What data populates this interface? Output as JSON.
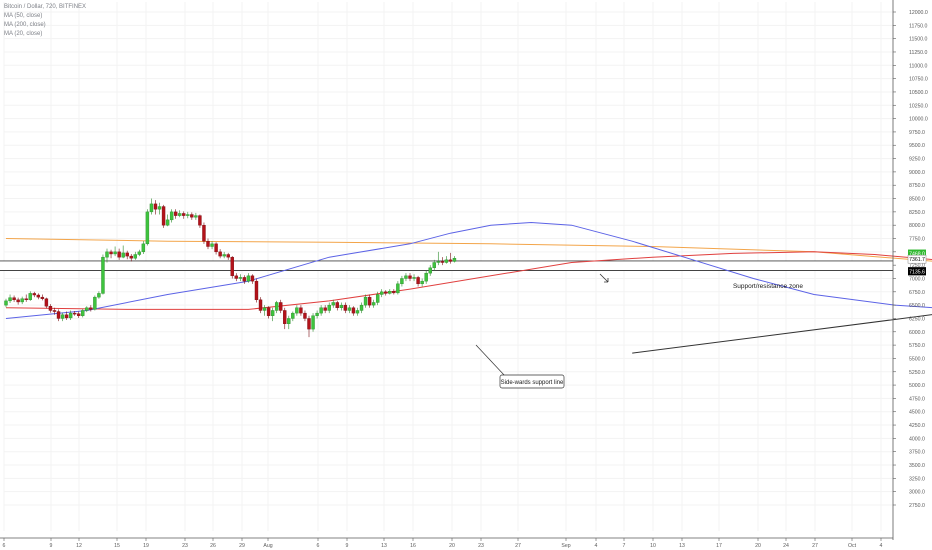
{
  "legend": {
    "symbol": "Bitcoin / Dollar, 720, BITFINEX",
    "ma50": "MA (50, close)",
    "ma200": "MA (200, close)",
    "ma20": "MA (20, close)"
  },
  "annotations": {
    "zone_label": "Support/resistance zone",
    "support_label": "Side-wards support line"
  },
  "colors": {
    "up": "#3ec33e",
    "down": "#b3121a",
    "ma20": "#5c63e6",
    "ma50": "#e0403f",
    "ma200": "#f3a54a",
    "price_tag": "#000000",
    "last_tag": "#2fb82f",
    "arrow_up": "#2fb82f"
  },
  "chart_data": {
    "type": "candlestick",
    "title": "Bitcoin / Dollar, 720, BITFINEX",
    "ylim": [
      2700,
      12300
    ],
    "y_ticks": [
      "12000.0",
      "11750.0",
      "11500.0",
      "11250.0",
      "11000.0",
      "10750.0",
      "10500.0",
      "10250.0",
      "10000.0",
      "9750.0",
      "9500.0",
      "9250.0",
      "9000.0",
      "8750.0",
      "8500.0",
      "8250.0",
      "8000.0",
      "7750.0",
      "7500.0",
      "7250.0",
      "7000.0",
      "6750.0",
      "6500.0",
      "6250.0",
      "6000.0",
      "5750.0",
      "5500.0",
      "5250.0",
      "5000.0",
      "4750.0",
      "4500.0",
      "4250.0",
      "4000.0",
      "3750.0",
      "3500.0",
      "3250.0",
      "3000.0",
      "2750.0"
    ],
    "x_ticks": [
      "6",
      "9",
      "12",
      "15",
      "19",
      "23",
      "26",
      "29",
      "Aug",
      "6",
      "9",
      "13",
      "16",
      "20",
      "23",
      "27",
      "Sep",
      "4",
      "7",
      "10",
      "13",
      "17",
      "20",
      "24",
      "27",
      "Oct",
      "4"
    ],
    "price_tags": [
      "7468.0",
      "7361.7",
      "7135.7",
      "7135.6"
    ],
    "candles": [
      {
        "o": 6500,
        "c": 6580,
        "h": 6620,
        "l": 6460
      },
      {
        "o": 6580,
        "c": 6640,
        "h": 6700,
        "l": 6540
      },
      {
        "o": 6640,
        "c": 6600,
        "h": 6680,
        "l": 6560
      },
      {
        "o": 6600,
        "c": 6560,
        "h": 6640,
        "l": 6510
      },
      {
        "o": 6560,
        "c": 6620,
        "h": 6660,
        "l": 6520
      },
      {
        "o": 6620,
        "c": 6600,
        "h": 6700,
        "l": 6560
      },
      {
        "o": 6600,
        "c": 6720,
        "h": 6760,
        "l": 6580
      },
      {
        "o": 6720,
        "c": 6690,
        "h": 6750,
        "l": 6650
      },
      {
        "o": 6690,
        "c": 6650,
        "h": 6720,
        "l": 6610
      },
      {
        "o": 6650,
        "c": 6620,
        "h": 6700,
        "l": 6590
      },
      {
        "o": 6620,
        "c": 6480,
        "h": 6640,
        "l": 6440
      },
      {
        "o": 6480,
        "c": 6400,
        "h": 6520,
        "l": 6360
      },
      {
        "o": 6400,
        "c": 6380,
        "h": 6450,
        "l": 6320
      },
      {
        "o": 6380,
        "c": 6250,
        "h": 6420,
        "l": 6200
      },
      {
        "o": 6250,
        "c": 6320,
        "h": 6360,
        "l": 6200
      },
      {
        "o": 6320,
        "c": 6260,
        "h": 6380,
        "l": 6220
      },
      {
        "o": 6260,
        "c": 6350,
        "h": 6400,
        "l": 6220
      },
      {
        "o": 6350,
        "c": 6340,
        "h": 6390,
        "l": 6300
      },
      {
        "o": 6340,
        "c": 6300,
        "h": 6380,
        "l": 6260
      },
      {
        "o": 6300,
        "c": 6400,
        "h": 6430,
        "l": 6270
      },
      {
        "o": 6400,
        "c": 6450,
        "h": 6480,
        "l": 6370
      },
      {
        "o": 6450,
        "c": 6420,
        "h": 6500,
        "l": 6380
      },
      {
        "o": 6420,
        "c": 6650,
        "h": 6680,
        "l": 6400
      },
      {
        "o": 6650,
        "c": 6720,
        "h": 6760,
        "l": 6620
      },
      {
        "o": 6720,
        "c": 7400,
        "h": 7450,
        "l": 6700
      },
      {
        "o": 7400,
        "c": 7500,
        "h": 7560,
        "l": 7300
      },
      {
        "o": 7500,
        "c": 7460,
        "h": 7540,
        "l": 7380
      },
      {
        "o": 7460,
        "c": 7500,
        "h": 7600,
        "l": 7420
      },
      {
        "o": 7500,
        "c": 7400,
        "h": 7560,
        "l": 7350
      },
      {
        "o": 7400,
        "c": 7480,
        "h": 7620,
        "l": 7380
      },
      {
        "o": 7480,
        "c": 7420,
        "h": 7520,
        "l": 7360
      },
      {
        "o": 7420,
        "c": 7380,
        "h": 7460,
        "l": 7320
      },
      {
        "o": 7380,
        "c": 7450,
        "h": 7500,
        "l": 7350
      },
      {
        "o": 7450,
        "c": 7500,
        "h": 7540,
        "l": 7420
      },
      {
        "o": 7500,
        "c": 7650,
        "h": 7700,
        "l": 7460
      },
      {
        "o": 7650,
        "c": 8250,
        "h": 8300,
        "l": 7620
      },
      {
        "o": 8250,
        "c": 8400,
        "h": 8500,
        "l": 8200
      },
      {
        "o": 8400,
        "c": 8300,
        "h": 8470,
        "l": 8200
      },
      {
        "o": 8300,
        "c": 8350,
        "h": 8420,
        "l": 8200
      },
      {
        "o": 8350,
        "c": 8000,
        "h": 8380,
        "l": 7950
      },
      {
        "o": 8000,
        "c": 8100,
        "h": 8200,
        "l": 7980
      },
      {
        "o": 8100,
        "c": 8250,
        "h": 8300,
        "l": 8050
      },
      {
        "o": 8250,
        "c": 8180,
        "h": 8300,
        "l": 8120
      },
      {
        "o": 8180,
        "c": 8220,
        "h": 8280,
        "l": 8150
      },
      {
        "o": 8220,
        "c": 8180,
        "h": 8260,
        "l": 8120
      },
      {
        "o": 8180,
        "c": 8200,
        "h": 8250,
        "l": 8130
      },
      {
        "o": 8200,
        "c": 8150,
        "h": 8240,
        "l": 8100
      },
      {
        "o": 8150,
        "c": 8180,
        "h": 8230,
        "l": 8100
      },
      {
        "o": 8180,
        "c": 8000,
        "h": 8200,
        "l": 7950
      },
      {
        "o": 8000,
        "c": 7700,
        "h": 8050,
        "l": 7650
      },
      {
        "o": 7700,
        "c": 7600,
        "h": 7750,
        "l": 7550
      },
      {
        "o": 7600,
        "c": 7650,
        "h": 7700,
        "l": 7550
      },
      {
        "o": 7650,
        "c": 7500,
        "h": 7680,
        "l": 7450
      },
      {
        "o": 7500,
        "c": 7420,
        "h": 7550,
        "l": 7380
      },
      {
        "o": 7420,
        "c": 7450,
        "h": 7500,
        "l": 7380
      },
      {
        "o": 7450,
        "c": 7400,
        "h": 7480,
        "l": 7350
      },
      {
        "o": 7400,
        "c": 7050,
        "h": 7420,
        "l": 7000
      },
      {
        "o": 7050,
        "c": 7000,
        "h": 7100,
        "l": 6950
      },
      {
        "o": 7000,
        "c": 7020,
        "h": 7080,
        "l": 6950
      },
      {
        "o": 7020,
        "c": 6950,
        "h": 7060,
        "l": 6900
      },
      {
        "o": 6950,
        "c": 7050,
        "h": 7100,
        "l": 6920
      },
      {
        "o": 7050,
        "c": 6950,
        "h": 7080,
        "l": 6900
      },
      {
        "o": 6950,
        "c": 6600,
        "h": 7000,
        "l": 6550
      },
      {
        "o": 6600,
        "c": 6400,
        "h": 6650,
        "l": 6350
      },
      {
        "o": 6400,
        "c": 6450,
        "h": 6500,
        "l": 6300
      },
      {
        "o": 6450,
        "c": 6300,
        "h": 6480,
        "l": 6250
      },
      {
        "o": 6300,
        "c": 6400,
        "h": 6450,
        "l": 6200
      },
      {
        "o": 6400,
        "c": 6550,
        "h": 6580,
        "l": 6350
      },
      {
        "o": 6550,
        "c": 6400,
        "h": 6600,
        "l": 6350
      },
      {
        "o": 6400,
        "c": 6150,
        "h": 6450,
        "l": 6050
      },
      {
        "o": 6150,
        "c": 6250,
        "h": 6300,
        "l": 6050
      },
      {
        "o": 6250,
        "c": 6350,
        "h": 6380,
        "l": 6200
      },
      {
        "o": 6350,
        "c": 6450,
        "h": 6500,
        "l": 6300
      },
      {
        "o": 6450,
        "c": 6350,
        "h": 6500,
        "l": 6300
      },
      {
        "o": 6350,
        "c": 6250,
        "h": 6400,
        "l": 6200
      },
      {
        "o": 6250,
        "c": 6050,
        "h": 6300,
        "l": 5900
      },
      {
        "o": 6050,
        "c": 6300,
        "h": 6350,
        "l": 6000
      },
      {
        "o": 6300,
        "c": 6350,
        "h": 6400,
        "l": 6250
      },
      {
        "o": 6350,
        "c": 6450,
        "h": 6500,
        "l": 6300
      },
      {
        "o": 6450,
        "c": 6400,
        "h": 6500,
        "l": 6350
      },
      {
        "o": 6400,
        "c": 6500,
        "h": 6550,
        "l": 6350
      },
      {
        "o": 6500,
        "c": 6550,
        "h": 6600,
        "l": 6450
      },
      {
        "o": 6550,
        "c": 6450,
        "h": 6580,
        "l": 6400
      },
      {
        "o": 6450,
        "c": 6500,
        "h": 6550,
        "l": 6400
      },
      {
        "o": 6500,
        "c": 6400,
        "h": 6550,
        "l": 6350
      },
      {
        "o": 6400,
        "c": 6450,
        "h": 6500,
        "l": 6350
      },
      {
        "o": 6450,
        "c": 6350,
        "h": 6480,
        "l": 6300
      },
      {
        "o": 6350,
        "c": 6400,
        "h": 6450,
        "l": 6300
      },
      {
        "o": 6400,
        "c": 6500,
        "h": 6550,
        "l": 6350
      },
      {
        "o": 6500,
        "c": 6650,
        "h": 6700,
        "l": 6450
      },
      {
        "o": 6650,
        "c": 6500,
        "h": 6700,
        "l": 6450
      },
      {
        "o": 6500,
        "c": 6550,
        "h": 6600,
        "l": 6450
      },
      {
        "o": 6550,
        "c": 6700,
        "h": 6750,
        "l": 6500
      },
      {
        "o": 6700,
        "c": 6750,
        "h": 6800,
        "l": 6650
      },
      {
        "o": 6750,
        "c": 6720,
        "h": 6780,
        "l": 6680
      },
      {
        "o": 6720,
        "c": 6760,
        "h": 6800,
        "l": 6700
      },
      {
        "o": 6760,
        "c": 6730,
        "h": 6800,
        "l": 6700
      },
      {
        "o": 6730,
        "c": 6900,
        "h": 6950,
        "l": 6700
      },
      {
        "o": 6900,
        "c": 7000,
        "h": 7050,
        "l": 6850
      },
      {
        "o": 7000,
        "c": 7050,
        "h": 7100,
        "l": 6950
      },
      {
        "o": 7050,
        "c": 7000,
        "h": 7100,
        "l": 6950
      },
      {
        "o": 7000,
        "c": 7020,
        "h": 7080,
        "l": 6950
      },
      {
        "o": 7020,
        "c": 6900,
        "h": 7050,
        "l": 6850
      },
      {
        "o": 6900,
        "c": 6950,
        "h": 7000,
        "l": 6850
      },
      {
        "o": 6950,
        "c": 7100,
        "h": 7150,
        "l": 6900
      },
      {
        "o": 7100,
        "c": 7200,
        "h": 7250,
        "l": 7050
      },
      {
        "o": 7200,
        "c": 7300,
        "h": 7350,
        "l": 7150
      },
      {
        "o": 7300,
        "c": 7320,
        "h": 7500,
        "l": 7250
      },
      {
        "o": 7320,
        "c": 7300,
        "h": 7400,
        "l": 7250
      },
      {
        "o": 7300,
        "c": 7350,
        "h": 7420,
        "l": 7280
      },
      {
        "o": 7350,
        "c": 7320,
        "h": 7480,
        "l": 7280
      },
      {
        "o": 7320,
        "c": 7380,
        "h": 7420,
        "l": 7300
      }
    ],
    "ma20": [
      [
        0,
        6250
      ],
      [
        20,
        6400
      ],
      [
        40,
        6700
      ],
      [
        60,
        6950
      ],
      [
        80,
        7400
      ],
      [
        100,
        7650
      ],
      [
        110,
        7850
      ],
      [
        120,
        8000
      ],
      [
        130,
        8050
      ],
      [
        140,
        8000
      ],
      [
        155,
        7700
      ],
      [
        170,
        7350
      ],
      [
        185,
        7000
      ],
      [
        200,
        6700
      ],
      [
        220,
        6500
      ],
      [
        240,
        6400
      ],
      [
        260,
        6420
      ],
      [
        275,
        6550
      ],
      [
        290,
        6700
      ],
      [
        305,
        6850
      ],
      [
        320,
        6950
      ],
      [
        335,
        7050
      ],
      [
        345,
        7150
      ],
      [
        356,
        7200
      ]
    ],
    "ma50": [
      [
        0,
        6450
      ],
      [
        30,
        6420
      ],
      [
        60,
        6420
      ],
      [
        80,
        6580
      ],
      [
        100,
        6800
      ],
      [
        120,
        7050
      ],
      [
        140,
        7300
      ],
      [
        160,
        7400
      ],
      [
        180,
        7470
      ],
      [
        200,
        7500
      ],
      [
        215,
        7450
      ],
      [
        230,
        7350
      ],
      [
        245,
        7200
      ],
      [
        260,
        7000
      ],
      [
        275,
        6850
      ],
      [
        290,
        6700
      ],
      [
        305,
        6600
      ],
      [
        320,
        6570
      ],
      [
        335,
        6600
      ],
      [
        345,
        6650
      ],
      [
        356,
        6700
      ]
    ],
    "ma200": [
      [
        0,
        7750
      ],
      [
        40,
        7700
      ],
      [
        80,
        7680
      ],
      [
        120,
        7650
      ],
      [
        160,
        7600
      ],
      [
        200,
        7500
      ],
      [
        230,
        7320
      ],
      [
        260,
        7100
      ],
      [
        290,
        6950
      ],
      [
        315,
        6880
      ],
      [
        335,
        6850
      ],
      [
        356,
        6850
      ]
    ],
    "support_line": [
      [
        155,
        5600
      ],
      [
        330,
        7300
      ]
    ],
    "forecast_arrow": [
      [
        330,
        7300
      ],
      [
        370,
        8500
      ]
    ],
    "zone": {
      "top": 7330,
      "bottom": 7150
    },
    "small_arrow_up": {
      "x": 345,
      "y": 6880
    }
  }
}
